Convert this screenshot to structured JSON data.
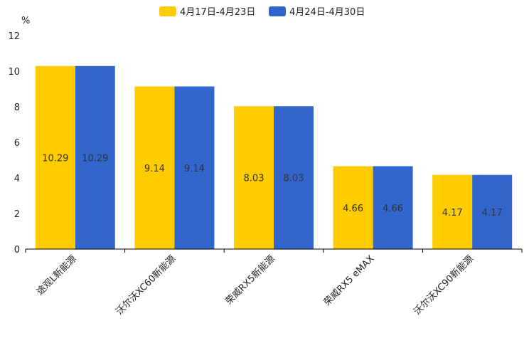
{
  "chart_data": {
    "type": "bar",
    "ylabel": "%",
    "ylim": [
      0,
      12
    ],
    "yticks": [
      0,
      2,
      4,
      6,
      8,
      10,
      12
    ],
    "categories": [
      "途观L新能源",
      "沃尔沃XC60新能源",
      "荣威RX5新能源",
      "荣威RX5 eMAX",
      "沃尔沃XC90新能源"
    ],
    "series": [
      {
        "name": "4月17日-4月23日",
        "color": "#FFCC00",
        "values": [
          10.29,
          9.14,
          8.03,
          4.66,
          4.17
        ],
        "labels": [
          "10.29",
          "9.14",
          "8.03",
          "4.66",
          "4.17"
        ]
      },
      {
        "name": "4月24日-4月30日",
        "color": "#3366CC",
        "values": [
          10.29,
          9.14,
          8.03,
          4.66,
          4.17
        ],
        "labels": [
          "10.29",
          "9.14",
          "8.03",
          "4.66",
          "4.17"
        ]
      }
    ],
    "legend_position": "top"
  }
}
